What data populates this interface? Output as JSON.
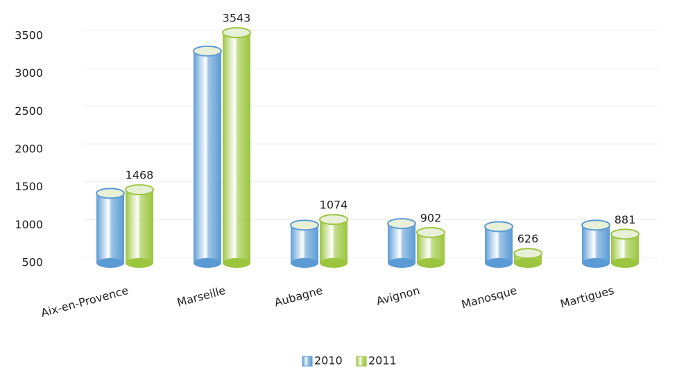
{
  "chart_data": {
    "type": "bar",
    "style": "cylinder",
    "categories": [
      "Aix-en-Provence",
      "Marseille",
      "Aubagne",
      "Avignon",
      "Manosque",
      "Martigues"
    ],
    "series": [
      {
        "name": "2010",
        "color": "#5b9bd5",
        "values": [
          1420,
          3300,
          1000,
          1020,
          980,
          1000
        ],
        "show_values": false
      },
      {
        "name": "2011",
        "color": "#9bc53d",
        "values": [
          1468,
          3543,
          1074,
          902,
          626,
          881
        ],
        "show_values": true
      }
    ],
    "ylim": [
      500,
      3700
    ],
    "yticks": [
      500,
      1000,
      1500,
      2000,
      2500,
      3000,
      3500
    ],
    "grid": true,
    "legend": "bottom"
  }
}
